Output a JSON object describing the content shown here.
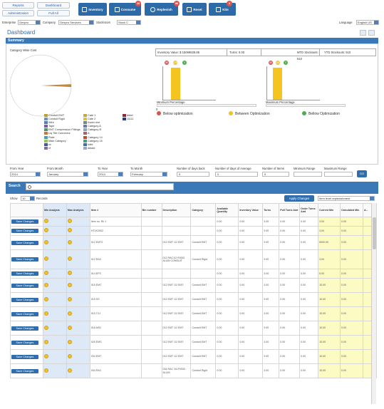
{
  "top_links": {
    "reports": "Reports",
    "dashboard": "Dashboard",
    "administration": "Administration",
    "full_all": "Full All"
  },
  "nav": [
    {
      "label": "Inventory",
      "badge": ""
    },
    {
      "label": "Consume",
      "badge": "29"
    },
    {
      "label": "Replenish",
      "badge": "88"
    },
    {
      "label": "Reset",
      "badge": ""
    },
    {
      "label": "Kits",
      "badge": "0"
    }
  ],
  "filters": {
    "enterprise_label": "Enterprise",
    "enterprise_value": "Gexpro",
    "company_label": "Company",
    "company_value": "Gexpro Services",
    "stockroom_label": "Stockroom",
    "stockroom_value": "Stock C",
    "language_label": "Language",
    "language_value": "English US"
  },
  "page_title": "Dashboard",
  "summary_title": "Summary",
  "category_title": "Category Wise Cost",
  "category_legend": [
    {
      "label": "Conduit EMT",
      "color": "#b5a040"
    },
    {
      "label": "Conduit Rigid",
      "color": "#7a8fb8"
    },
    {
      "label": "Wire",
      "color": "#4d7fbd"
    },
    {
      "label": "Tape",
      "color": "#7e5aa0"
    },
    {
      "label": "EMT Compression Fittings",
      "color": "#5a8f6a"
    },
    {
      "label": "Liq Tite Connector",
      "color": "#c07a40"
    },
    {
      "label": "Plate",
      "color": "#4a9cb0"
    },
    {
      "label": "Main Category",
      "color": "#a0c050"
    },
    {
      "label": "xc",
      "color": "#3a5a9a"
    },
    {
      "label": "vf",
      "color": "#8a6a9a"
    },
    {
      "label": "Cate 1",
      "color": "#c8a83a"
    },
    {
      "label": "Cate 2",
      "color": "#e0c040"
    },
    {
      "label": "Kwdd rere",
      "color": "#708890"
    },
    {
      "label": "Category A",
      "color": "#6a7ab0"
    },
    {
      "label": "Category B",
      "color": "#90a0c0"
    },
    {
      "label": "A",
      "color": "#b06060"
    },
    {
      "label": "Category 14",
      "color": "#c04a30"
    },
    {
      "label": "Category 15",
      "color": "#40a080"
    },
    {
      "label": "hdfd",
      "color": "#3a70b0"
    },
    {
      "label": "ddsdd",
      "color": "#9aa8c8"
    },
    {
      "label": "dddd",
      "color": "#8a2a3a"
    },
    {
      "label": "11111",
      "color": "#2a3a7a"
    }
  ],
  "stats": {
    "inventory_value": "Inventory Value: $ 15069828.85",
    "turns": "Turns: 0.00",
    "mtd": "MTD Stockouts: 510",
    "ytd": "YTD Stockouts: 510"
  },
  "min_chart": {
    "label": "Minimum Percentage",
    "axis": "0",
    "circles": [
      "88",
      "179",
      "0"
    ]
  },
  "max_chart": {
    "label": "Maximum Percentage",
    "axis": "0",
    "circles": [
      "88",
      "169",
      "0"
    ]
  },
  "optimization_legend": {
    "below": "Below optimization",
    "between": "Between Optimization",
    "above": "Bellow Optimization"
  },
  "date_filter": {
    "from_year_label": "From Year",
    "from_year": "2014",
    "from_month_label": "From Month",
    "from_month": "January",
    "to_year_label": "To Year",
    "to_year": "2014",
    "to_month_label": "To Month",
    "to_month": "February",
    "days_back_label": "Number of days back",
    "days_back": "0",
    "days_avg_label": "Number of days of Average",
    "days_avg": "0",
    "num_label": "Number of Items",
    "num": "0",
    "min_range_label": "Minimum Range",
    "min_range": "",
    "max_range_label": "Maximum Range",
    "max_range": "",
    "go": "GO"
  },
  "search_title": "Search",
  "search_placeholder": "",
  "show_label": "Show",
  "show_value": "10",
  "records_label": "Records",
  "apply_label": "Apply Changes",
  "replenish_select": "Item level replenishment",
  "columns": [
    "",
    "Min Analysis",
    "Max Analysis",
    "Item #",
    "Bin number",
    "Description",
    "Category",
    "Available Quantity",
    "Inventory Value",
    "Turns",
    "Pull Turns Amt",
    "Order Turns Amt",
    "Current Min",
    "Calculated Min",
    "A..."
  ],
  "rows": [
    {
      "save": "Save Changes",
      "item": "Item no. Rk 1",
      "desc": "",
      "cat": "",
      "avail": "0.00",
      "inv": "0.00",
      "turns": "3.00",
      "pull": "0.00",
      "order": "0.00",
      "curmin": "3.00",
      "calcmin": "0.00"
    },
    {
      "save": "Save Changes",
      "item": "HT1K2502",
      "desc": "",
      "cat": "",
      "avail": "0.00",
      "inv": "0.00",
      "turns": "3.00",
      "pull": "0.00",
      "order": "0.00",
      "curmin": "3.00",
      "calcmin": "0.00"
    },
    {
      "save": "Save Changes",
      "item": "012 EMT2",
      "desc": "012 EMT 1/2 EMT",
      "cat": "Conduit EMT",
      "avail": "0.00",
      "inv": "0.00",
      "turns": "3.00",
      "pull": "0.00",
      "order": "0.00",
      "curmin": "5000.00",
      "calcmin": "0.00"
    },
    {
      "save": "Save Changes",
      "item": "012 RAC",
      "desc": "012 RAC1/2 RIGID ALUM CONDUIT",
      "cat": "Conduit Rigid",
      "avail": "0.00",
      "inv": "0.00",
      "turns": "3.00",
      "pull": "0.00",
      "order": "0.00",
      "curmin": "3.00",
      "calcmin": "0.00"
    },
    {
      "save": "Save Changes",
      "item": "014 EFS",
      "desc": "",
      "cat": "",
      "avail": "0.00",
      "inv": "0.00",
      "turns": "3.00",
      "pull": "0.00",
      "order": "0.00",
      "curmin": "5.00",
      "calcmin": "0.00"
    },
    {
      "save": "Save Changes",
      "item": "015 EMT",
      "desc": "012 EMT 1/2 EMT",
      "cat": "Conduit EMT",
      "avail": "0.00",
      "inv": "0.00",
      "turns": "3.00",
      "pull": "0.00",
      "order": "0.00",
      "curmin": "10.00",
      "calcmin": "0.00"
    },
    {
      "save": "Save Changes",
      "item": "015 SS",
      "desc": "012 EMT 1/2 EMT",
      "cat": "Conduit EMT",
      "avail": "0.00",
      "inv": "0.00",
      "turns": "3.00",
      "pull": "0.00",
      "order": "0.00",
      "curmin": "10.00",
      "calcmin": "0.00"
    },
    {
      "save": "Save Changes",
      "item": "015 TXJ",
      "desc": "012 EMT 1/2 EMT",
      "cat": "Conduit EMT",
      "avail": "0.00",
      "inv": "0.00",
      "turns": "3.00",
      "pull": "0.00",
      "order": "0.00",
      "curmin": "10.00",
      "calcmin": "0.00"
    },
    {
      "save": "Save Changes",
      "item": "018 ASD",
      "desc": "012 EMT 1/2 EMT",
      "cat": "Conduit EMT",
      "avail": "0.00",
      "inv": "0.00",
      "turns": "3.00",
      "pull": "0.00",
      "order": "0.00",
      "curmin": "10.00",
      "calcmin": "0.00"
    },
    {
      "save": "Save Changes",
      "item": "025 EMS",
      "desc": "012 EMT 1/2 EMT",
      "cat": "Conduit EMT",
      "avail": "0.00",
      "inv": "0.00",
      "turns": "3.00",
      "pull": "0.00",
      "order": "0.00",
      "curmin": "10.00",
      "calcmin": "0.00"
    },
    {
      "save": "Save Changes",
      "item": "034 EMT",
      "desc": "012 EMT 1/2 EMT",
      "cat": "Conduit EMT",
      "avail": "0.00",
      "inv": "0.00",
      "turns": "3.00",
      "pull": "0.00",
      "order": "0.00",
      "curmin": "10.00",
      "calcmin": "0.00"
    },
    {
      "save": "Save Changes",
      "item": "034 RAC",
      "desc": "034 RAC 3/4 RIGID ALUM",
      "cat": "Conduit Rigid",
      "avail": "0.00",
      "inv": "0.00",
      "turns": "3.00",
      "pull": "0.00",
      "order": "0.00",
      "curmin": "10.00",
      "calcmin": "0.00"
    }
  ]
}
